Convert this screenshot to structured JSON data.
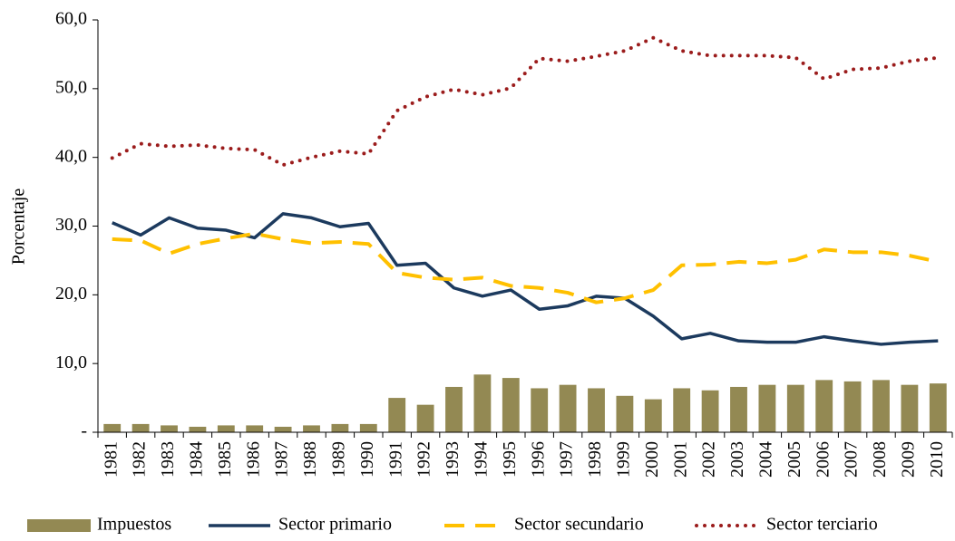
{
  "chart_data": {
    "type": "combo",
    "y_label": "Porcentaje",
    "categories": [
      "1981",
      "1982",
      "1983",
      "1984",
      "1985",
      "1986",
      "1987",
      "1988",
      "1989",
      "1990",
      "1991",
      "1992",
      "1993",
      "1994",
      "1995",
      "1996",
      "1997",
      "1998",
      "1999",
      "2000",
      "2001",
      "2002",
      "2003",
      "2004",
      "2005",
      "2006",
      "2007",
      "2008",
      "2009",
      "2010"
    ],
    "ylim": [
      0,
      60
    ],
    "yticks": [
      {
        "value": 0,
        "label": "-"
      },
      {
        "value": 10,
        "label": "10,0"
      },
      {
        "value": 20,
        "label": "20,0"
      },
      {
        "value": 30,
        "label": "30,0"
      },
      {
        "value": 40,
        "label": "40,0"
      },
      {
        "value": 50,
        "label": "50,0"
      },
      {
        "value": 60,
        "label": "60,0"
      }
    ],
    "legend": "bottom",
    "series": [
      {
        "name": "Impuestos",
        "type": "bar",
        "color": "#938953",
        "values": [
          1.2,
          1.2,
          1.0,
          0.8,
          1.0,
          1.0,
          0.8,
          1.0,
          1.2,
          1.2,
          5.0,
          4.0,
          6.6,
          8.4,
          7.9,
          6.4,
          6.9,
          6.4,
          5.3,
          4.8,
          6.4,
          6.1,
          6.6,
          6.9,
          6.9,
          7.6,
          7.4,
          7.6,
          6.9,
          7.1
        ]
      },
      {
        "name": "Sector primario",
        "type": "line",
        "linestyle": "solid",
        "color": "#1c3a5e",
        "values": [
          30.5,
          28.7,
          31.2,
          29.7,
          29.4,
          28.3,
          31.8,
          31.2,
          29.9,
          30.4,
          24.3,
          24.6,
          21.0,
          19.8,
          20.7,
          17.9,
          18.4,
          19.8,
          19.5,
          16.9,
          13.6,
          14.4,
          13.3,
          13.1,
          13.1,
          13.9,
          13.3,
          12.8,
          13.1,
          13.3
        ]
      },
      {
        "name": "Sector secundario",
        "type": "line",
        "linestyle": "dashed",
        "color": "#ffc000",
        "values": [
          28.1,
          27.9,
          26.0,
          27.4,
          28.2,
          28.9,
          28.1,
          27.5,
          27.7,
          27.4,
          23.2,
          22.5,
          22.2,
          22.5,
          21.3,
          21.0,
          20.3,
          18.9,
          19.5,
          20.7,
          24.3,
          24.4,
          24.8,
          24.6,
          25.1,
          26.6,
          26.2,
          26.2,
          25.7,
          24.8
        ]
      },
      {
        "name": "Sector terciario",
        "type": "line",
        "linestyle": "dotted",
        "color": "#9b1c1c",
        "values": [
          39.9,
          42.0,
          41.6,
          41.8,
          41.3,
          41.1,
          38.9,
          40.0,
          40.9,
          40.5,
          46.8,
          48.8,
          49.9,
          49.1,
          50.1,
          54.4,
          54.0,
          54.7,
          55.5,
          57.4,
          55.5,
          54.8,
          54.8,
          54.8,
          54.5,
          51.4,
          52.8,
          53.0,
          54.0,
          54.5
        ]
      }
    ]
  }
}
